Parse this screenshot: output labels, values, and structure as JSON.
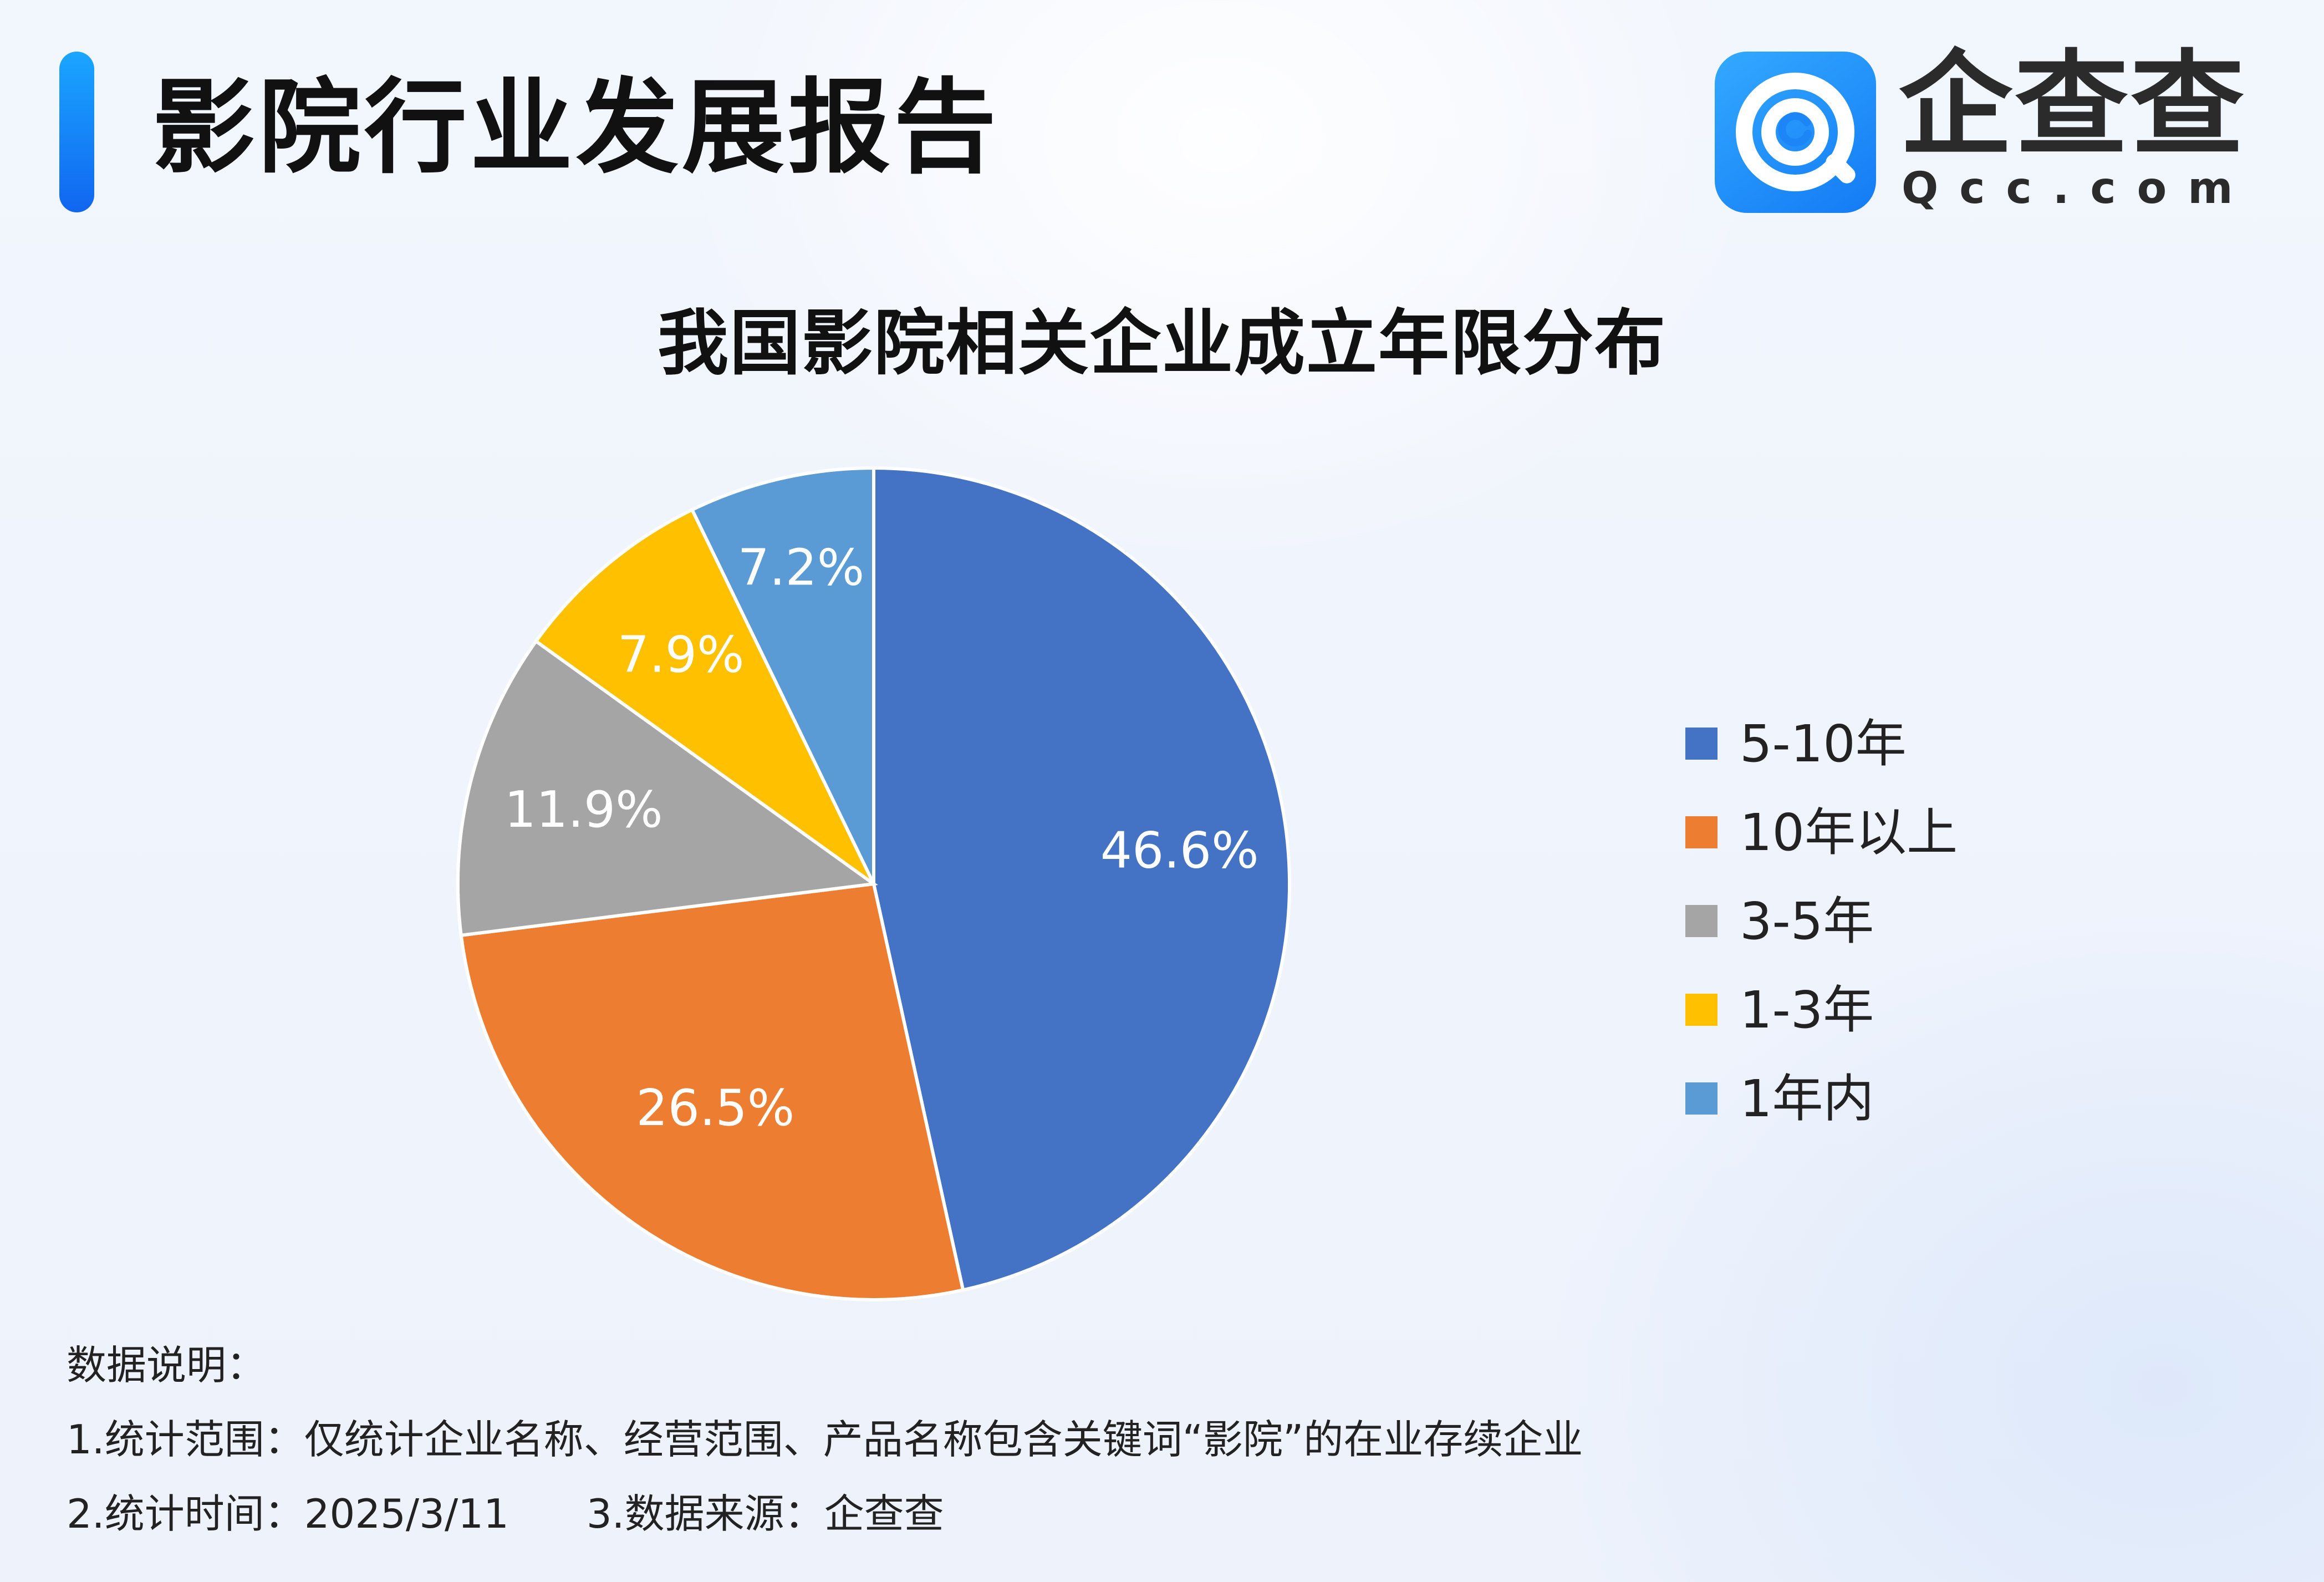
{
  "header": {
    "report_title": "影院行业发展报告",
    "logo_name": "企查查",
    "logo_domain": "Qcc.com",
    "accent_color": "#1677f7"
  },
  "chart_data": {
    "type": "pie",
    "title": "我国影院相关企业成立年限分布",
    "slices": [
      {
        "label": "5-10年",
        "value": 46.6,
        "display": "46.6%",
        "color": "#4472c4"
      },
      {
        "label": "10年以上",
        "value": 26.5,
        "display": "26.5%",
        "color": "#ed7d31"
      },
      {
        "label": "3-5年",
        "value": 11.9,
        "display": "11.9%",
        "color": "#a5a5a5"
      },
      {
        "label": "1-3年",
        "value": 7.9,
        "display": "7.9%",
        "color": "#ffc000"
      },
      {
        "label": "1年内",
        "value": 7.2,
        "display": "7.2%",
        "color": "#5b9bd5"
      }
    ],
    "legend_position": "right"
  },
  "notes": {
    "heading": "数据说明：",
    "scope": "1.统计范围：仅统计企业名称、经营范围、产品名称包含关键词“影院”的在业存续企业",
    "time": "2.统计时间：2025/3/11",
    "source": "3.数据来源：企查查"
  }
}
